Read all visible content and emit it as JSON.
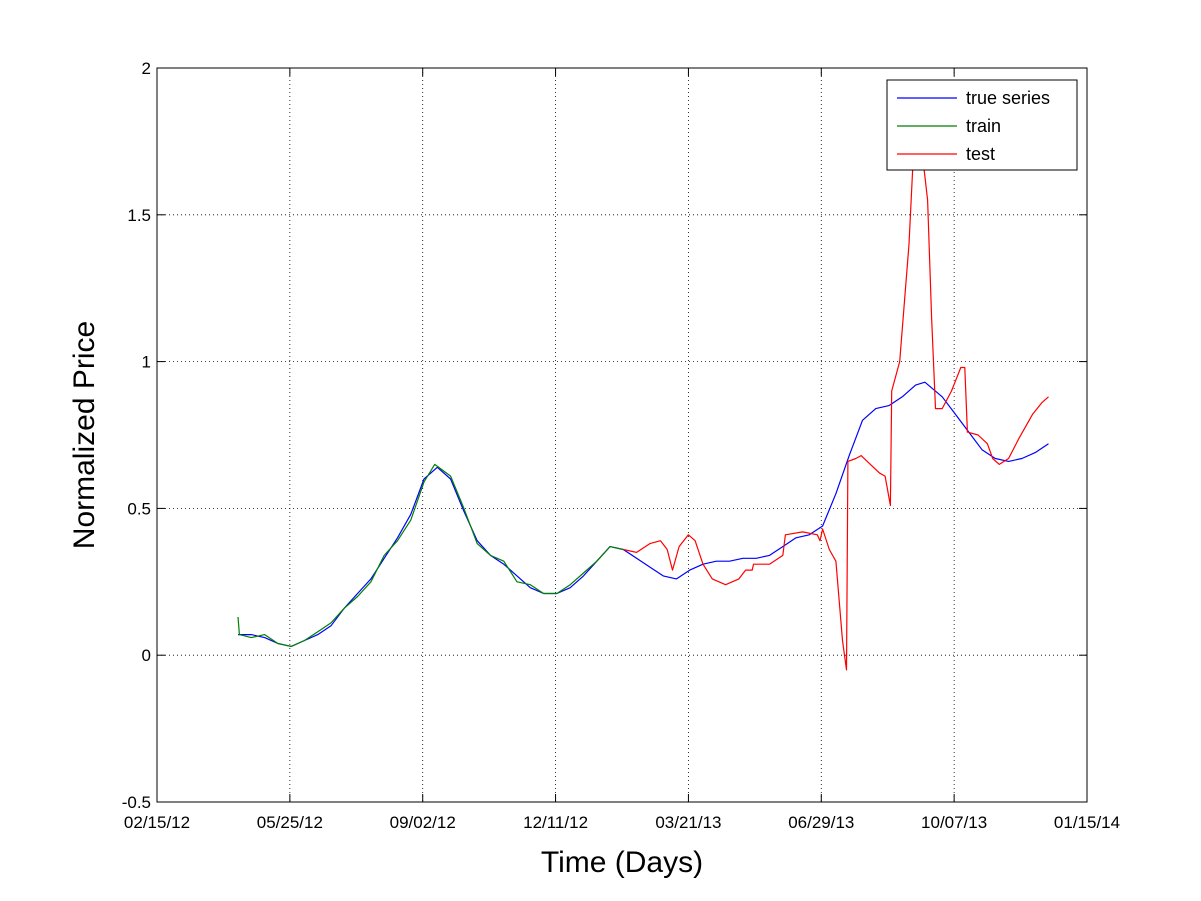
{
  "chart_data": {
    "type": "line",
    "xlabel": "Time (Days)",
    "ylabel": "Normalized Price",
    "xlim": [
      "02/15/12",
      "01/15/14"
    ],
    "ylim": [
      -0.5,
      2
    ],
    "x_ticks": [
      "02/15/12",
      "05/25/12",
      "09/02/12",
      "12/11/12",
      "03/21/13",
      "06/29/13",
      "10/07/13",
      "01/15/14"
    ],
    "y_ticks": [
      "-0.5",
      "0",
      "0.5",
      "1",
      "1.5",
      "2"
    ],
    "grid": true,
    "legend_position": "top-right",
    "series": [
      {
        "name": "true series",
        "color": "#0000ff",
        "points": [
          [
            "04/16/12",
            0.07
          ],
          [
            "04/26/12",
            0.07
          ],
          [
            "05/06/12",
            0.06
          ],
          [
            "05/16/12",
            0.04
          ],
          [
            "05/26/12",
            0.03
          ],
          [
            "06/05/12",
            0.05
          ],
          [
            "06/15/12",
            0.07
          ],
          [
            "06/25/12",
            0.1
          ],
          [
            "07/05/12",
            0.16
          ],
          [
            "07/15/12",
            0.21
          ],
          [
            "07/25/12",
            0.26
          ],
          [
            "08/04/12",
            0.33
          ],
          [
            "08/14/12",
            0.4
          ],
          [
            "08/24/12",
            0.48
          ],
          [
            "09/03/12",
            0.6
          ],
          [
            "09/13/12",
            0.64
          ],
          [
            "09/23/12",
            0.6
          ],
          [
            "10/03/12",
            0.49
          ],
          [
            "10/13/12",
            0.39
          ],
          [
            "10/23/12",
            0.34
          ],
          [
            "11/02/12",
            0.31
          ],
          [
            "11/12/12",
            0.27
          ],
          [
            "11/22/12",
            0.23
          ],
          [
            "12/02/12",
            0.21
          ],
          [
            "12/12/12",
            0.21
          ],
          [
            "12/22/12",
            0.23
          ],
          [
            "01/01/13",
            0.27
          ],
          [
            "01/11/13",
            0.32
          ],
          [
            "01/21/13",
            0.37
          ],
          [
            "01/31/13",
            0.36
          ],
          [
            "02/10/13",
            0.33
          ],
          [
            "02/20/13",
            0.3
          ],
          [
            "03/02/13",
            0.27
          ],
          [
            "03/12/13",
            0.26
          ],
          [
            "03/22/13",
            0.29
          ],
          [
            "04/01/13",
            0.31
          ],
          [
            "04/11/13",
            0.32
          ],
          [
            "04/21/13",
            0.32
          ],
          [
            "05/01/13",
            0.33
          ],
          [
            "05/11/13",
            0.33
          ],
          [
            "05/21/13",
            0.34
          ],
          [
            "05/31/13",
            0.37
          ],
          [
            "06/10/13",
            0.4
          ],
          [
            "06/20/13",
            0.41
          ],
          [
            "06/30/13",
            0.44
          ],
          [
            "07/10/13",
            0.55
          ],
          [
            "07/20/13",
            0.68
          ],
          [
            "07/30/13",
            0.8
          ],
          [
            "08/09/13",
            0.84
          ],
          [
            "08/19/13",
            0.85
          ],
          [
            "08/29/13",
            0.88
          ],
          [
            "09/08/13",
            0.92
          ],
          [
            "09/15/13",
            0.93
          ],
          [
            "09/28/13",
            0.88
          ],
          [
            "10/08/13",
            0.82
          ],
          [
            "10/18/13",
            0.76
          ],
          [
            "10/28/13",
            0.7
          ],
          [
            "11/07/13",
            0.67
          ],
          [
            "11/17/13",
            0.66
          ],
          [
            "11/27/13",
            0.67
          ],
          [
            "12/07/13",
            0.69
          ],
          [
            "12/17/13",
            0.72
          ]
        ]
      },
      {
        "name": "train",
        "color": "#008000",
        "points": [
          [
            "04/16/12",
            0.13
          ],
          [
            "04/17/12",
            0.07
          ],
          [
            "04/26/12",
            0.06
          ],
          [
            "05/06/12",
            0.07
          ],
          [
            "05/16/12",
            0.04
          ],
          [
            "05/26/12",
            0.03
          ],
          [
            "06/05/12",
            0.05
          ],
          [
            "06/15/12",
            0.08
          ],
          [
            "06/25/12",
            0.11
          ],
          [
            "07/05/12",
            0.16
          ],
          [
            "07/15/12",
            0.2
          ],
          [
            "07/25/12",
            0.25
          ],
          [
            "08/04/12",
            0.34
          ],
          [
            "08/14/12",
            0.39
          ],
          [
            "08/24/12",
            0.46
          ],
          [
            "09/03/12",
            0.59
          ],
          [
            "09/11/12",
            0.65
          ],
          [
            "09/23/12",
            0.61
          ],
          [
            "10/03/12",
            0.5
          ],
          [
            "10/13/12",
            0.38
          ],
          [
            "10/23/12",
            0.34
          ],
          [
            "11/02/12",
            0.32
          ],
          [
            "11/12/12",
            0.25
          ],
          [
            "11/22/12",
            0.24
          ],
          [
            "12/02/12",
            0.21
          ],
          [
            "12/12/12",
            0.21
          ],
          [
            "12/22/12",
            0.24
          ],
          [
            "01/01/13",
            0.28
          ],
          [
            "01/11/13",
            0.32
          ],
          [
            "01/21/13",
            0.37
          ],
          [
            "01/31/13",
            0.36
          ]
        ]
      },
      {
        "name": "test",
        "color": "#ff0000",
        "points": [
          [
            "01/31/13",
            0.36
          ],
          [
            "02/10/13",
            0.35
          ],
          [
            "02/20/13",
            0.38
          ],
          [
            "02/28/13",
            0.39
          ],
          [
            "03/05/13",
            0.36
          ],
          [
            "03/09/13",
            0.29
          ],
          [
            "03/14/13",
            0.37
          ],
          [
            "03/21/13",
            0.41
          ],
          [
            "03/26/13",
            0.39
          ],
          [
            "04/01/13",
            0.31
          ],
          [
            "04/08/13",
            0.26
          ],
          [
            "04/18/13",
            0.24
          ],
          [
            "04/28/13",
            0.26
          ],
          [
            "05/03/13",
            0.29
          ],
          [
            "05/08/13",
            0.29
          ],
          [
            "05/09/13",
            0.31
          ],
          [
            "05/21/13",
            0.31
          ],
          [
            "05/31/13",
            0.34
          ],
          [
            "06/02/13",
            0.41
          ],
          [
            "06/15/13",
            0.42
          ],
          [
            "06/26/13",
            0.41
          ],
          [
            "06/28/13",
            0.39
          ],
          [
            "06/30/13",
            0.43
          ],
          [
            "07/05/13",
            0.36
          ],
          [
            "07/10/13",
            0.32
          ],
          [
            "07/15/13",
            0.05
          ],
          [
            "07/18/13",
            -0.05
          ],
          [
            "07/19/13",
            0.66
          ],
          [
            "07/25/13",
            0.67
          ],
          [
            "07/29/13",
            0.68
          ],
          [
            "08/05/13",
            0.65
          ],
          [
            "08/12/13",
            0.62
          ],
          [
            "08/16/13",
            0.61
          ],
          [
            "08/20/13",
            0.51
          ],
          [
            "08/21/13",
            0.9
          ],
          [
            "08/27/13",
            1.0
          ],
          [
            "09/03/13",
            1.4
          ],
          [
            "09/09/13",
            1.95
          ],
          [
            "09/12/13",
            1.75
          ],
          [
            "09/17/13",
            1.55
          ],
          [
            "09/20/13",
            1.15
          ],
          [
            "09/23/13",
            0.84
          ],
          [
            "09/28/13",
            0.84
          ],
          [
            "10/05/13",
            0.9
          ],
          [
            "10/12/13",
            0.98
          ],
          [
            "10/15/13",
            0.98
          ],
          [
            "10/17/13",
            0.76
          ],
          [
            "10/25/13",
            0.75
          ],
          [
            "11/01/13",
            0.72
          ],
          [
            "11/05/13",
            0.67
          ],
          [
            "11/10/13",
            0.65
          ],
          [
            "11/17/13",
            0.67
          ],
          [
            "11/25/13",
            0.74
          ],
          [
            "12/05/13",
            0.82
          ],
          [
            "12/12/13",
            0.86
          ],
          [
            "12/17/13",
            0.88
          ]
        ]
      }
    ]
  }
}
